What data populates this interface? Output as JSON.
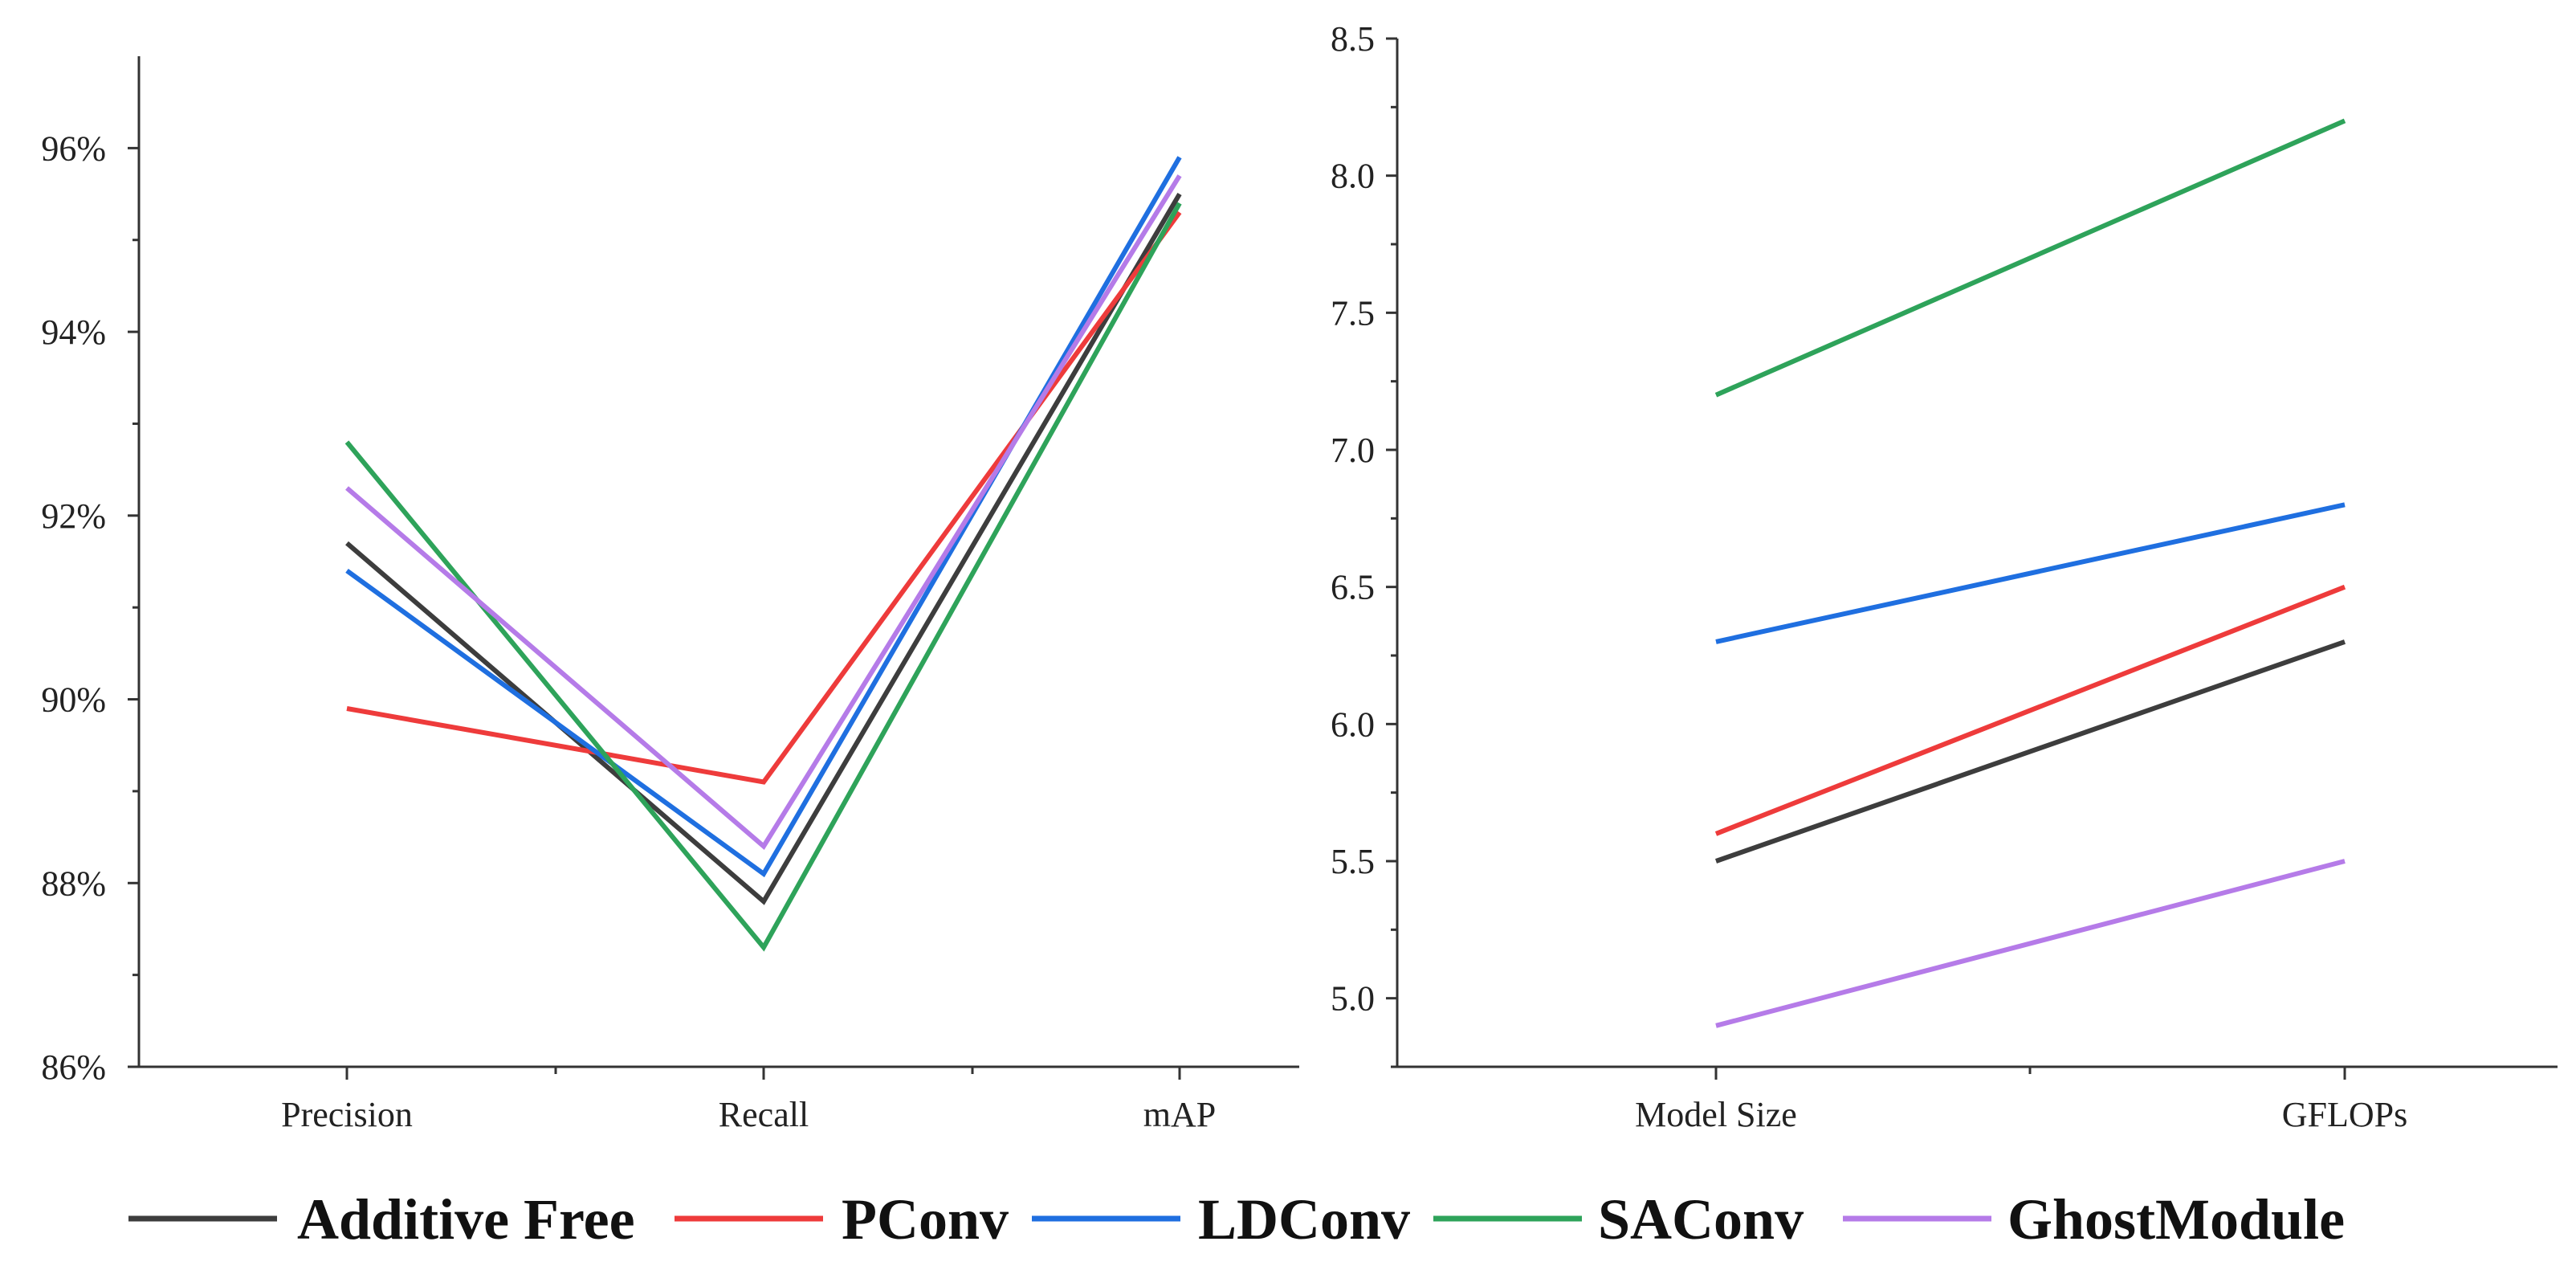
{
  "chart_data": [
    {
      "type": "line",
      "title": "",
      "xlabel": "",
      "ylabel": "",
      "categories": [
        "Precision",
        "Recall",
        "mAP"
      ],
      "ylim": [
        86,
        97
      ],
      "y_ticks": [
        86,
        88,
        90,
        92,
        94,
        96
      ],
      "y_tick_labels": [
        "86%",
        "88%",
        "90%",
        "92%",
        "94%",
        "96%"
      ],
      "series": [
        {
          "name": "Additive Free",
          "color": "#3d3d3d",
          "values": [
            91.7,
            87.8,
            95.5
          ]
        },
        {
          "name": "PConv",
          "color": "#ee3b3b",
          "values": [
            89.9,
            89.1,
            95.3
          ]
        },
        {
          "name": "LDConv",
          "color": "#1f6fe0",
          "values": [
            91.4,
            88.1,
            95.9
          ]
        },
        {
          "name": "SAConv",
          "color": "#2ea35a",
          "values": [
            92.8,
            87.3,
            95.4
          ]
        },
        {
          "name": "GhostModule",
          "color": "#b57be8",
          "values": [
            92.3,
            88.4,
            95.7
          ]
        }
      ]
    },
    {
      "type": "line",
      "title": "",
      "xlabel": "",
      "ylabel": "",
      "categories": [
        "Model Size",
        "GFLOPs"
      ],
      "ylim": [
        4.75,
        8.5
      ],
      "y_ticks": [
        5.0,
        5.5,
        6.0,
        6.5,
        7.0,
        7.5,
        8.0,
        8.5
      ],
      "y_tick_labels": [
        "5.0",
        "5.5",
        "6.0",
        "6.5",
        "7.0",
        "7.5",
        "8.0",
        "8.5"
      ],
      "series": [
        {
          "name": "Additive Free",
          "color": "#3d3d3d",
          "values": [
            5.5,
            6.3
          ]
        },
        {
          "name": "PConv",
          "color": "#ee3b3b",
          "values": [
            5.6,
            6.5
          ]
        },
        {
          "name": "LDConv",
          "color": "#1f6fe0",
          "values": [
            6.3,
            6.8
          ]
        },
        {
          "name": "SAConv",
          "color": "#2ea35a",
          "values": [
            7.2,
            8.2
          ]
        },
        {
          "name": "GhostModule",
          "color": "#b57be8",
          "values": [
            4.9,
            5.5
          ]
        }
      ]
    }
  ],
  "legend": {
    "placement": "bottom",
    "items": [
      {
        "label": "Additive Free",
        "color": "#3d3d3d"
      },
      {
        "label": "PConv",
        "color": "#ee3b3b"
      },
      {
        "label": "LDConv",
        "color": "#1f6fe0"
      },
      {
        "label": "SAConv",
        "color": "#2ea35a"
      },
      {
        "label": "GhostModule",
        "color": "#b57be8"
      }
    ]
  }
}
